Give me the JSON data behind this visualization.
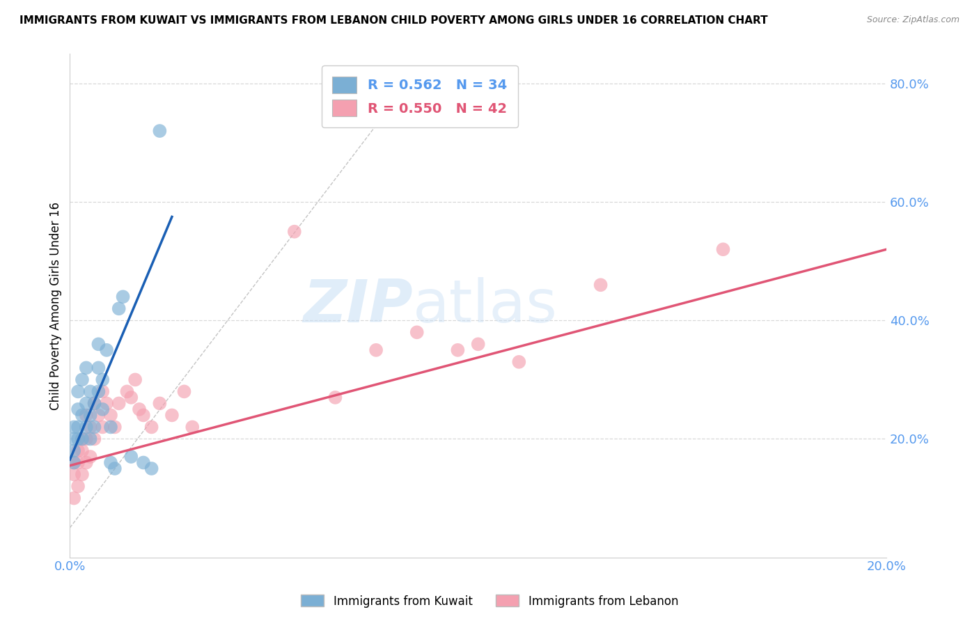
{
  "title": "IMMIGRANTS FROM KUWAIT VS IMMIGRANTS FROM LEBANON CHILD POVERTY AMONG GIRLS UNDER 16 CORRELATION CHART",
  "source": "Source: ZipAtlas.com",
  "ylabel": "Child Poverty Among Girls Under 16",
  "xlim": [
    0.0,
    0.2
  ],
  "ylim": [
    0.0,
    0.85
  ],
  "x_ticks": [
    0.0,
    0.04,
    0.08,
    0.12,
    0.16,
    0.2
  ],
  "x_tick_labels": [
    "0.0%",
    "",
    "",
    "",
    "",
    "20.0%"
  ],
  "y_ticks_right": [
    0.2,
    0.4,
    0.6,
    0.8
  ],
  "y_tick_labels_right": [
    "20.0%",
    "40.0%",
    "60.0%",
    "80.0%"
  ],
  "kuwait_R": "0.562",
  "kuwait_N": "34",
  "lebanon_R": "0.550",
  "lebanon_N": "42",
  "kuwait_color": "#7bafd4",
  "lebanon_color": "#f4a0b0",
  "kuwait_line_color": "#1a5fb4",
  "lebanon_line_color": "#e05575",
  "watermark_zip": "ZIP",
  "watermark_atlas": "atlas",
  "background_color": "#ffffff",
  "grid_color": "#d8d8d8",
  "kuwait_x": [
    0.001,
    0.001,
    0.001,
    0.001,
    0.002,
    0.002,
    0.002,
    0.002,
    0.003,
    0.003,
    0.003,
    0.004,
    0.004,
    0.004,
    0.005,
    0.005,
    0.005,
    0.006,
    0.006,
    0.007,
    0.007,
    0.007,
    0.008,
    0.008,
    0.009,
    0.01,
    0.01,
    0.011,
    0.012,
    0.013,
    0.015,
    0.018,
    0.02,
    0.022
  ],
  "kuwait_y": [
    0.16,
    0.18,
    0.2,
    0.22,
    0.2,
    0.22,
    0.25,
    0.28,
    0.2,
    0.24,
    0.3,
    0.22,
    0.26,
    0.32,
    0.2,
    0.24,
    0.28,
    0.22,
    0.26,
    0.28,
    0.32,
    0.36,
    0.25,
    0.3,
    0.35,
    0.22,
    0.16,
    0.15,
    0.42,
    0.44,
    0.17,
    0.16,
    0.15,
    0.72
  ],
  "lebanon_x": [
    0.001,
    0.001,
    0.001,
    0.002,
    0.002,
    0.002,
    0.003,
    0.003,
    0.003,
    0.004,
    0.004,
    0.004,
    0.005,
    0.005,
    0.006,
    0.006,
    0.007,
    0.008,
    0.008,
    0.009,
    0.01,
    0.011,
    0.012,
    0.014,
    0.015,
    0.016,
    0.017,
    0.018,
    0.02,
    0.022,
    0.025,
    0.028,
    0.03,
    0.055,
    0.065,
    0.075,
    0.085,
    0.095,
    0.1,
    0.11,
    0.13,
    0.16
  ],
  "lebanon_y": [
    0.1,
    0.14,
    0.16,
    0.12,
    0.16,
    0.18,
    0.14,
    0.18,
    0.2,
    0.16,
    0.2,
    0.24,
    0.17,
    0.22,
    0.2,
    0.26,
    0.24,
    0.22,
    0.28,
    0.26,
    0.24,
    0.22,
    0.26,
    0.28,
    0.27,
    0.3,
    0.25,
    0.24,
    0.22,
    0.26,
    0.24,
    0.28,
    0.22,
    0.55,
    0.27,
    0.35,
    0.38,
    0.35,
    0.36,
    0.33,
    0.46,
    0.52
  ],
  "kuwait_line_x": [
    0.0,
    0.025
  ],
  "kuwait_line_y": [
    0.165,
    0.575
  ],
  "lebanon_line_x": [
    0.0,
    0.2
  ],
  "lebanon_line_y": [
    0.155,
    0.52
  ]
}
